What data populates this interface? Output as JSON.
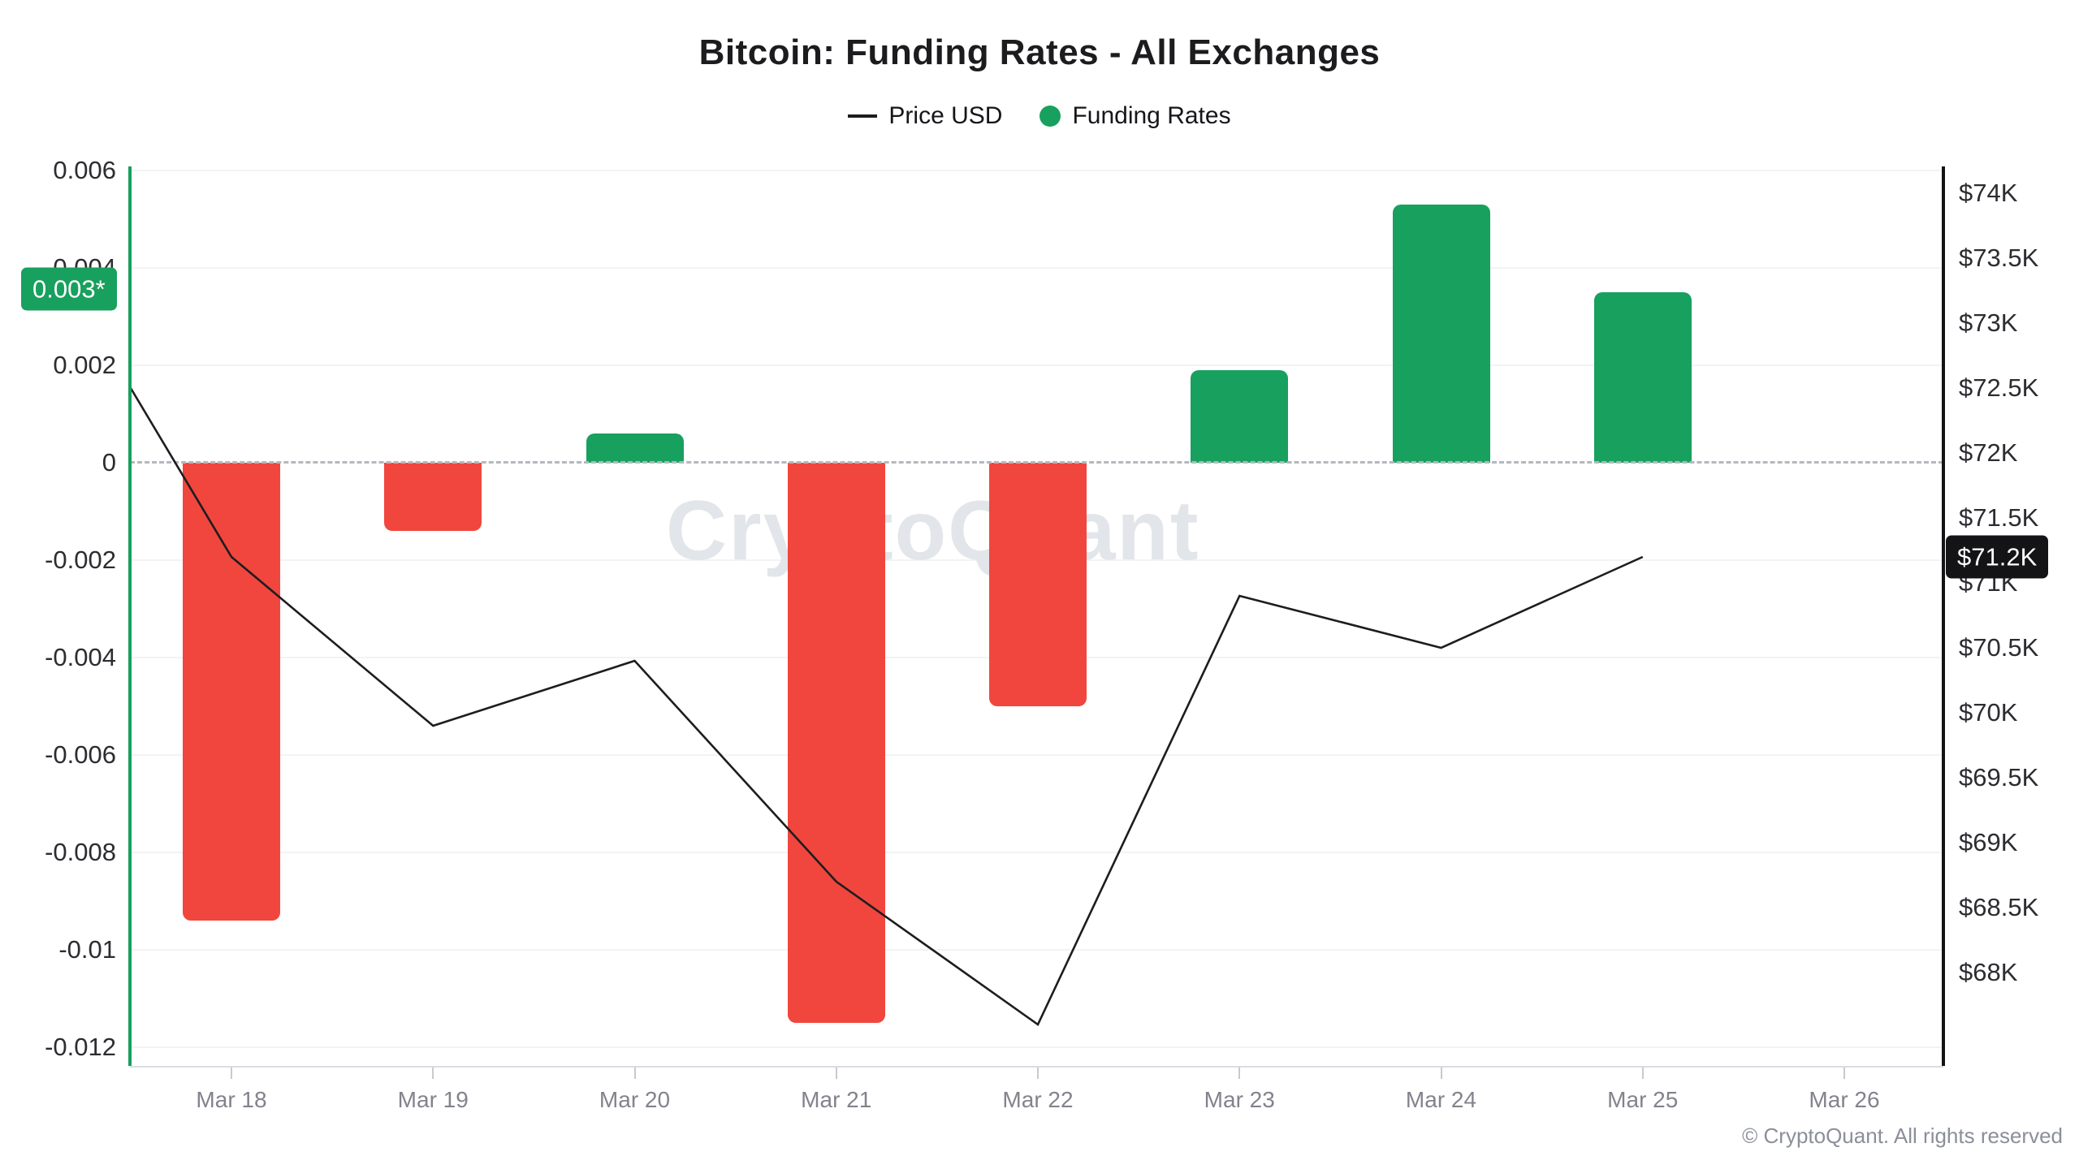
{
  "page": {
    "title": "Bitcoin: Funding Rates - All Exchanges",
    "watermark": "CryptoQuant",
    "copyright": "© CryptoQuant. All rights reserved"
  },
  "legend": {
    "price_label": "Price USD",
    "funding_label": "Funding Rates"
  },
  "annotations": {
    "left_axis_badge": "0.003*",
    "right_axis_badge": "$71.2K"
  },
  "colors": {
    "green": "#18a05e",
    "red": "#f1463d",
    "price_line": "#1d1d1f",
    "zero_dash": "#b4b8be",
    "gridline": "#f2f3f4"
  },
  "chart_data": {
    "type": "combo",
    "title": "Bitcoin: Funding Rates - All Exchanges",
    "grid": true,
    "legend_position": "top",
    "categories": [
      "Mar 18",
      "Mar 19",
      "Mar 20",
      "Mar 21",
      "Mar 22",
      "Mar 23",
      "Mar 24",
      "Mar 25",
      "Mar 26"
    ],
    "series": [
      {
        "name": "Funding Rates",
        "type": "bar",
        "axis": "left",
        "positive_color": "#18a05e",
        "negative_color": "#f1463d",
        "values": [
          -0.0094,
          -0.0014,
          0.0006,
          -0.0115,
          -0.005,
          0.0019,
          0.0053,
          0.0035,
          null
        ]
      },
      {
        "name": "Price USD",
        "type": "line",
        "axis": "right",
        "color": "#1d1d1f",
        "points": [
          {
            "day_offset": -0.5,
            "price_usd": 72500
          },
          {
            "day_offset": 0,
            "price_usd": 71200
          },
          {
            "day_offset": 1,
            "price_usd": 69900
          },
          {
            "day_offset": 2,
            "price_usd": 70400
          },
          {
            "day_offset": 3,
            "price_usd": 68700
          },
          {
            "day_offset": 4,
            "price_usd": 67600
          },
          {
            "day_offset": 5,
            "price_usd": 70900
          },
          {
            "day_offset": 6,
            "price_usd": 70500
          },
          {
            "day_offset": 7,
            "price_usd": 71200
          }
        ]
      }
    ],
    "left_axis": {
      "side": "left",
      "tick_labels": [
        "0.006",
        "0.004",
        "0.002",
        "0",
        "-0.002",
        "-0.004",
        "-0.006",
        "-0.008",
        "-0.01",
        "-0.012"
      ],
      "tick_values": [
        0.006,
        0.004,
        0.002,
        0,
        -0.002,
        -0.004,
        -0.006,
        -0.008,
        -0.01,
        -0.012
      ],
      "current_value_marker": "0.003*",
      "zero_line": "dashed"
    },
    "right_axis": {
      "side": "right",
      "tick_labels": [
        "$74K",
        "$73.5K",
        "$73K",
        "$72.5K",
        "$72K",
        "$71.5K",
        "$71K",
        "$70.5K",
        "$70K",
        "$69.5K",
        "$69K",
        "$68.5K",
        "$68K"
      ],
      "tick_values": [
        74000,
        73500,
        73000,
        72500,
        72000,
        71500,
        71000,
        70500,
        70000,
        69500,
        69000,
        68500,
        68000
      ],
      "current_value_marker": "$71.2K"
    }
  }
}
